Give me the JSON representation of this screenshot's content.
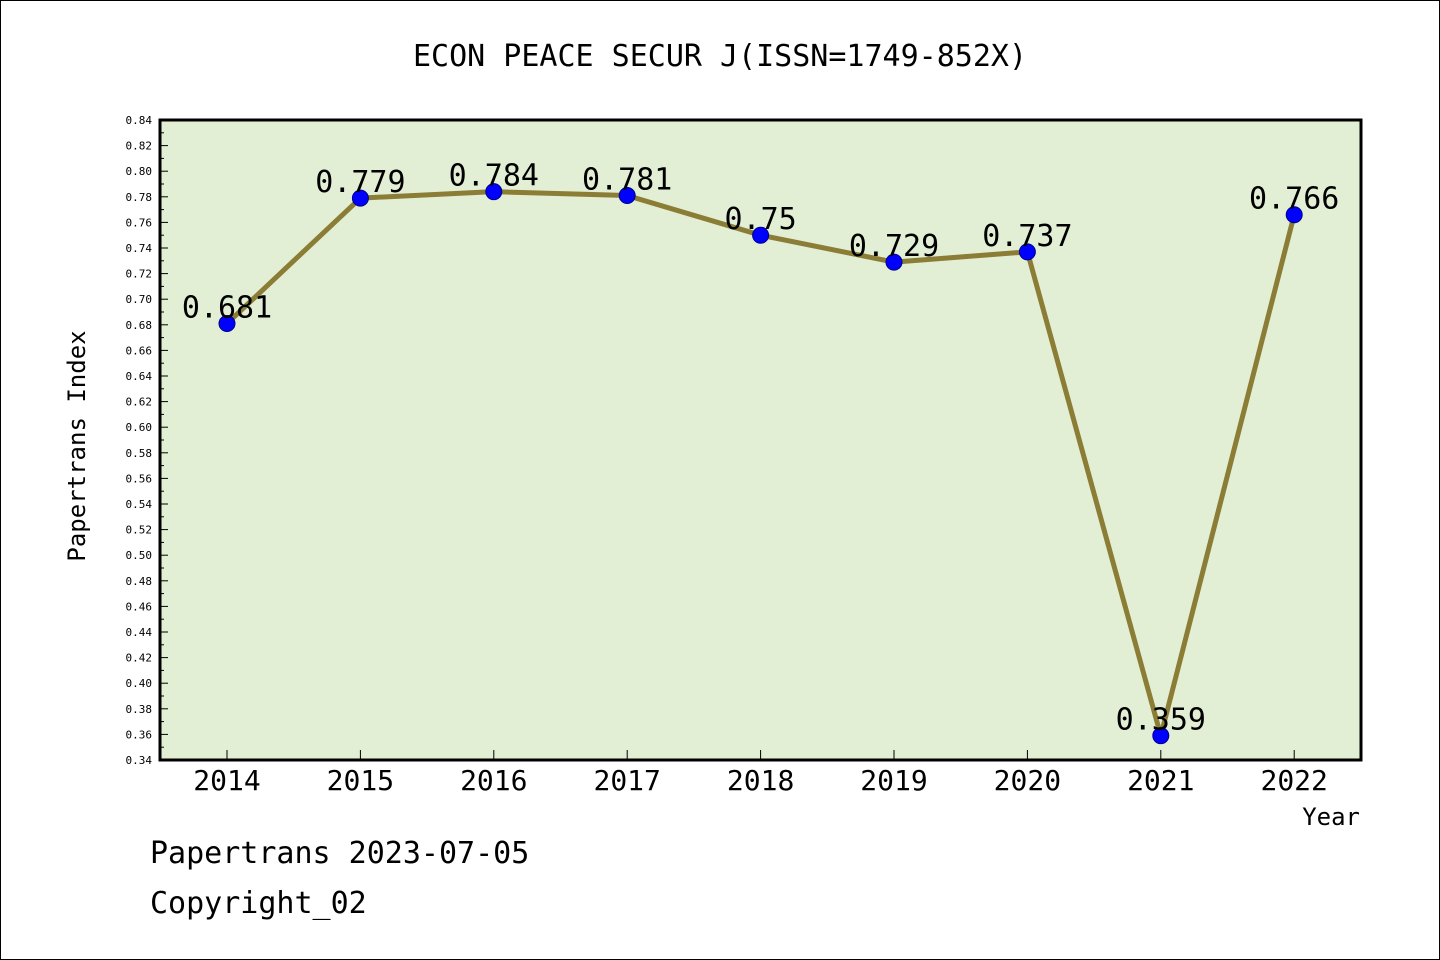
{
  "colors": {
    "plot_background": "#e2efd5",
    "line": "#8b7d35",
    "marker": "#0000ff",
    "axis": "#000000"
  },
  "chart_data": {
    "type": "line",
    "title": "ECON PEACE SECUR J(ISSN=1749-852X)",
    "xlabel": "Year",
    "ylabel": "Papertrans Index",
    "categories": [
      "2014",
      "2015",
      "2016",
      "2017",
      "2018",
      "2019",
      "2020",
      "2021",
      "2022"
    ],
    "values": [
      0.681,
      0.779,
      0.784,
      0.781,
      0.75,
      0.729,
      0.737,
      0.359,
      0.766
    ],
    "data_labels": [
      "0.681",
      "0.779",
      "0.784",
      "0.781",
      "0.75",
      "0.729",
      "0.737",
      "0.359",
      "0.766"
    ],
    "ylim": [
      0.34,
      0.84
    ],
    "yticks": [
      "0.34",
      "0.36",
      "0.38",
      "0.40",
      "0.42",
      "0.44",
      "0.46",
      "0.48",
      "0.50",
      "0.52",
      "0.54",
      "0.56",
      "0.58",
      "0.60",
      "0.62",
      "0.64",
      "0.66",
      "0.68",
      "0.70",
      "0.72",
      "0.74",
      "0.76",
      "0.78",
      "0.80",
      "0.82",
      "0.84"
    ],
    "grid": false,
    "legend": "none"
  },
  "footer": {
    "line1": "Papertrans 2023-07-05",
    "line2": "Copyright_02"
  }
}
